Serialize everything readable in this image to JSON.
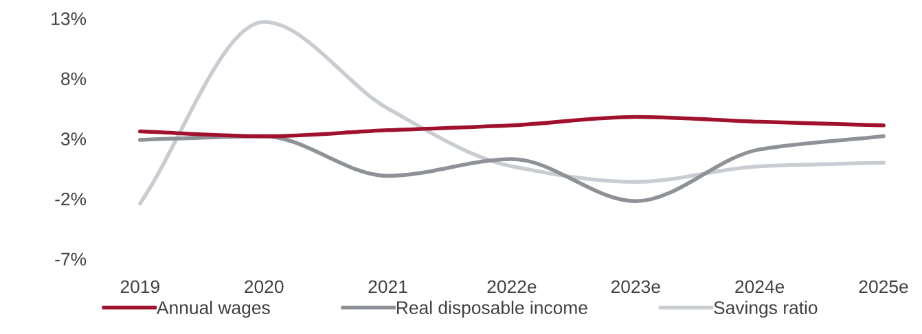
{
  "chart_data": {
    "type": "line",
    "categories": [
      "2019",
      "2020",
      "2021",
      "2022e",
      "2023e",
      "2024e",
      "2025e"
    ],
    "series": [
      {
        "name": "Annual wages",
        "color": "#a0112e",
        "values": [
          3.6,
          3.2,
          3.7,
          4.1,
          4.8,
          4.4,
          4.1
        ]
      },
      {
        "name": "Real disposable income",
        "color": "#8e9196",
        "values": [
          2.9,
          3.2,
          -0.1,
          1.3,
          -2.2,
          2.1,
          3.2
        ]
      },
      {
        "name": "Savings ratio",
        "color": "#c9cdd2",
        "values": [
          -2.4,
          12.7,
          5.5,
          0.7,
          -0.6,
          0.7,
          1.0
        ]
      }
    ],
    "ylim": [
      -7,
      13
    ],
    "yticks": [
      {
        "value": -7,
        "label": "-7%"
      },
      {
        "value": -2,
        "label": "-2%"
      },
      {
        "value": 3,
        "label": "3%"
      },
      {
        "value": 8,
        "label": "8%"
      },
      {
        "value": 13,
        "label": "13%"
      }
    ],
    "grid": false,
    "legend": "bottom",
    "marker": "none",
    "line_style": "solid"
  }
}
